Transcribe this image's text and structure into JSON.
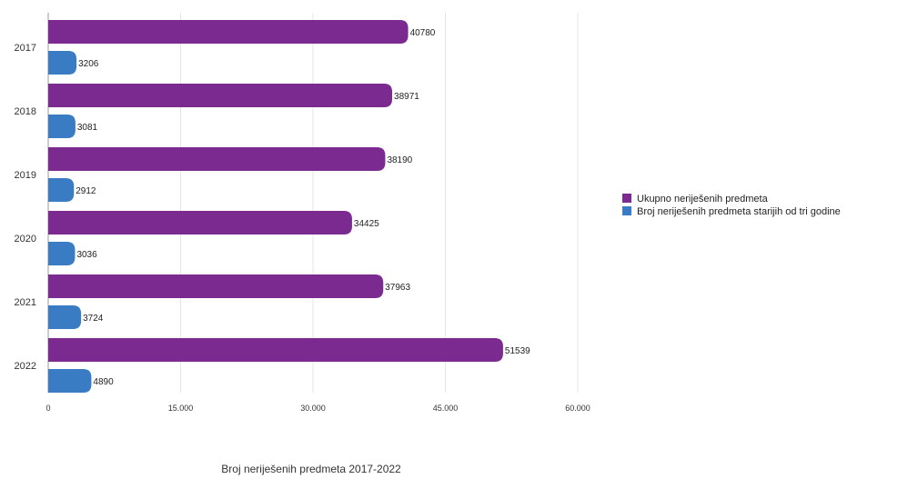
{
  "chart_data": {
    "type": "bar",
    "orientation": "horizontal",
    "title": "Broj neriješenih predmeta 2017-2022",
    "categories": [
      "2017",
      "2018",
      "2019",
      "2020",
      "2021",
      "2022"
    ],
    "series": [
      {
        "name": "Ukupno neriješenih predmeta",
        "color": "#7b2a8f",
        "values": [
          40780,
          38971,
          38190,
          34425,
          37963,
          51539
        ]
      },
      {
        "name": "Broj neriješenih predmeta starijih od tri godine",
        "color": "#3a7cc4",
        "values": [
          3206,
          3081,
          2912,
          3036,
          3724,
          4890
        ]
      }
    ],
    "xlim": [
      0,
      60000
    ],
    "xticks": [
      0,
      15000,
      30000,
      45000,
      60000
    ],
    "xtick_labels": [
      "0",
      "15.000",
      "30.000",
      "45.000",
      "60.000"
    ],
    "grid": true,
    "legend_position": "right"
  }
}
